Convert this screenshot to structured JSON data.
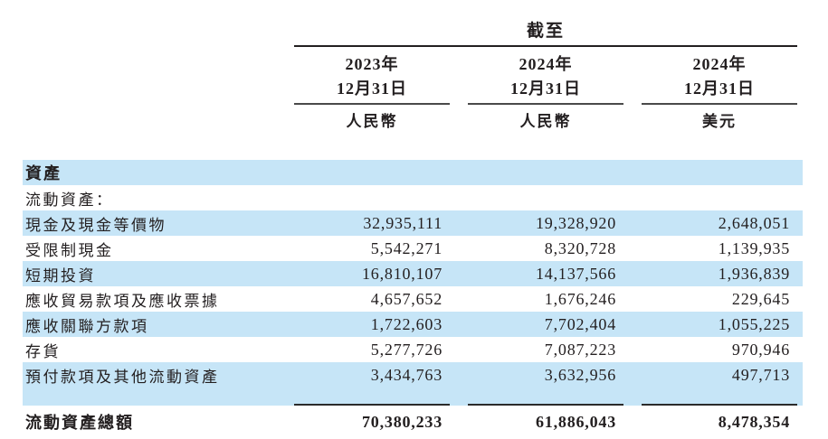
{
  "header": {
    "as_of_label": "截至",
    "columns": [
      {
        "year": "2023年",
        "date": "12月31日",
        "currency": "人民幣"
      },
      {
        "year": "2024年",
        "date": "12月31日",
        "currency": "人民幣"
      },
      {
        "year": "2024年",
        "date": "12月31日",
        "currency": "美元"
      }
    ]
  },
  "rows": [
    {
      "label": "資產"
    },
    {
      "label": "流動資產："
    },
    {
      "label": "現金及現金等價物",
      "v1": "32,935,111",
      "v2": "19,328,920",
      "v3": "2,648,051"
    },
    {
      "label": "受限制現金",
      "v1": "5,542,271",
      "v2": "8,320,728",
      "v3": "1,139,935"
    },
    {
      "label": "短期投資",
      "v1": "16,810,107",
      "v2": "14,137,566",
      "v3": "1,936,839"
    },
    {
      "label": "應收貿易款項及應收票據",
      "v1": "4,657,652",
      "v2": "1,676,246",
      "v3": "229,645"
    },
    {
      "label": "應收關聯方款項",
      "v1": "1,722,603",
      "v2": "7,702,404",
      "v3": "1,055,225"
    },
    {
      "label": "存貨",
      "v1": "5,277,726",
      "v2": "7,087,223",
      "v3": "970,946"
    },
    {
      "label": "預付款項及其他流動資產",
      "v1": "3,434,763",
      "v2": "3,632,956",
      "v3": "497,713"
    },
    {
      "label": "流動資產總額",
      "v1": "70,380,233",
      "v2": "61,886,043",
      "v3": "8,478,354"
    }
  ],
  "colors": {
    "row_highlight": "#c6e5f7",
    "text": "#231f20",
    "rule_heavy": "#231f20",
    "rule_light": "#4a4a4a"
  }
}
